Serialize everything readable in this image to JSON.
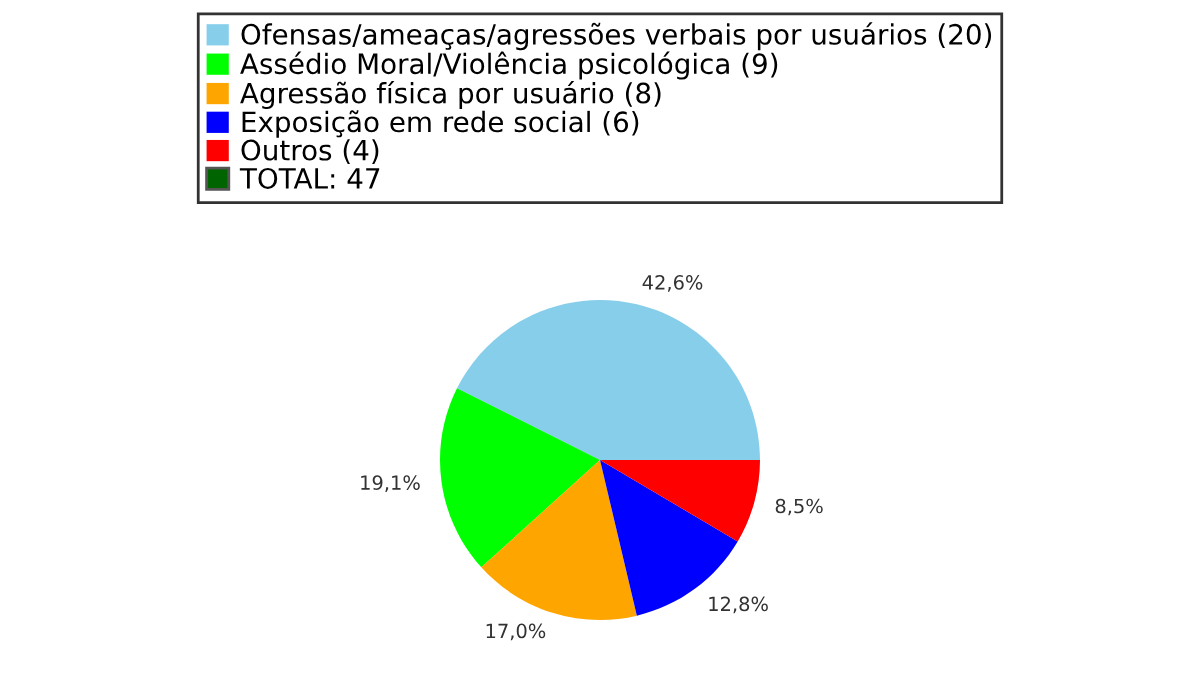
{
  "chart_data": {
    "type": "pie",
    "categories": [
      "Ofensas/ameaças/agressões verbais por usuários (20)",
      "Assédio Moral/Violência psicológica (9)",
      "Agressão física por usuário (8)",
      "Exposição em rede social (6)",
      "Outros (4)"
    ],
    "values": [
      42.6,
      19.1,
      17.0,
      12.8,
      8.5
    ],
    "value_labels": [
      "42,6%",
      "19,1%",
      "17,0%",
      "12,8%",
      "8,5%"
    ],
    "colors": [
      "#87ceeb",
      "#00ff00",
      "#ffa500",
      "#0000ff",
      "#ff0000"
    ],
    "annotations": [
      "TOTAL: 47"
    ],
    "legend": "top"
  }
}
